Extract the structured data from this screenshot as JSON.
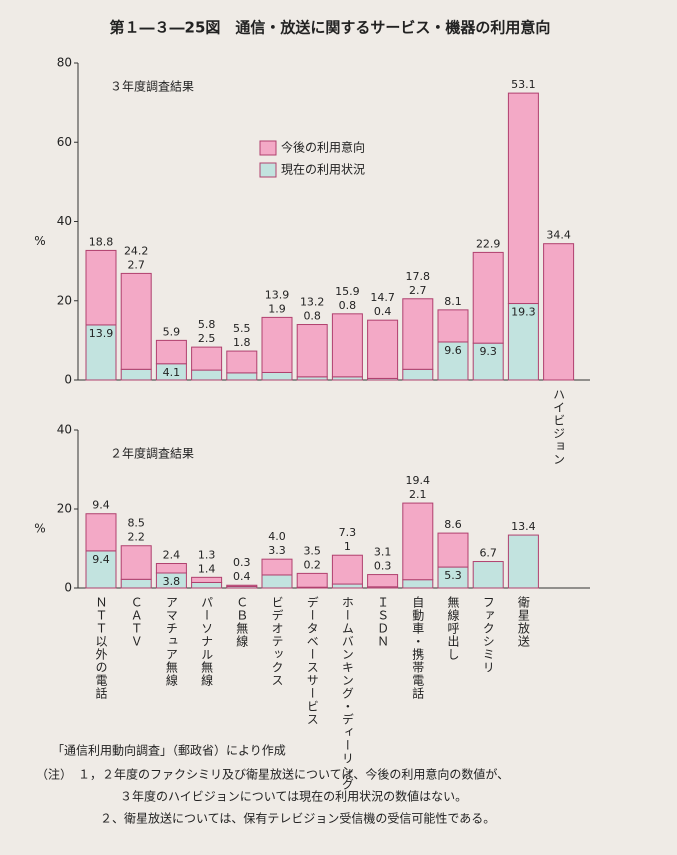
{
  "title": "第１―３―25図　通信・放送に関するサービス・機器の利用意向",
  "chart_data": [
    {
      "type": "stacked-bar",
      "subtitle": "３年度調査結果",
      "ylabel": "%",
      "categories": [
        null,
        null,
        null,
        null,
        null,
        null,
        null,
        null,
        null,
        null,
        null,
        null,
        null,
        "ハイビジョン"
      ],
      "ylim": [
        0,
        80
      ],
      "yticks": [
        0,
        20,
        40,
        60,
        80
      ],
      "legend": "top-center",
      "series": [
        {
          "name": "現在の利用状況",
          "color": "#c2e3df",
          "values": [
            13.9,
            2.7,
            4.1,
            2.5,
            1.8,
            1.9,
            0.8,
            0.8,
            0.4,
            2.7,
            9.6,
            9.3,
            19.3,
            null
          ]
        },
        {
          "name": "今後の利用意向",
          "color": "#f3a9c6",
          "values": [
            18.8,
            24.2,
            5.9,
            5.8,
            5.5,
            13.9,
            13.2,
            15.9,
            14.7,
            17.8,
            8.1,
            22.9,
            53.1,
            34.4
          ]
        }
      ]
    },
    {
      "type": "stacked-bar",
      "subtitle": "２年度調査結果",
      "ylabel": "%",
      "categories": [
        "ＮＴＴ以外の電話",
        "ＣＡＴＶ",
        "アマチュア無線",
        "パーソナル無線",
        "ＣＢ無線",
        "ビデオテックス",
        "データベースサービス",
        "ホームバンキング・ディーリング",
        "ＩＳＤＮ",
        "自動車・携帯電話",
        "無線呼出し",
        "ファクシミリ",
        "衛星放送"
      ],
      "ylim": [
        0,
        40
      ],
      "yticks": [
        0,
        20,
        40
      ],
      "series": [
        {
          "color": "#c2e3df",
          "values": [
            9.4,
            2.2,
            3.8,
            1.4,
            0.4,
            3.3,
            0.2,
            1.0,
            0.3,
            2.1,
            5.3,
            6.7,
            13.4
          ]
        },
        {
          "color": "#f3a9c6",
          "values": [
            9.4,
            8.5,
            2.4,
            1.3,
            0.3,
            4.0,
            3.5,
            7.3,
            3.1,
            19.4,
            8.6,
            null,
            null
          ],
          "value_labels": [
            "9.4",
            "8.5",
            "2.4",
            "1.3",
            "0.3",
            "4.0",
            "3.5",
            "7.3",
            "3.1",
            "19.4",
            "8.6",
            null,
            null
          ]
        }
      ]
    }
  ],
  "source": "「通信利用動向調査」（郵政省）により作成",
  "notes": [
    "（注）　１，２年度のファクシミリ及び衛星放送については、今後の利用意向の数値が、",
    "３年度のハイビジョンについては現在の利用状況の数値はない。",
    "２、衛星放送については、保有テレビジョン受信機の受信可能性である。"
  ]
}
